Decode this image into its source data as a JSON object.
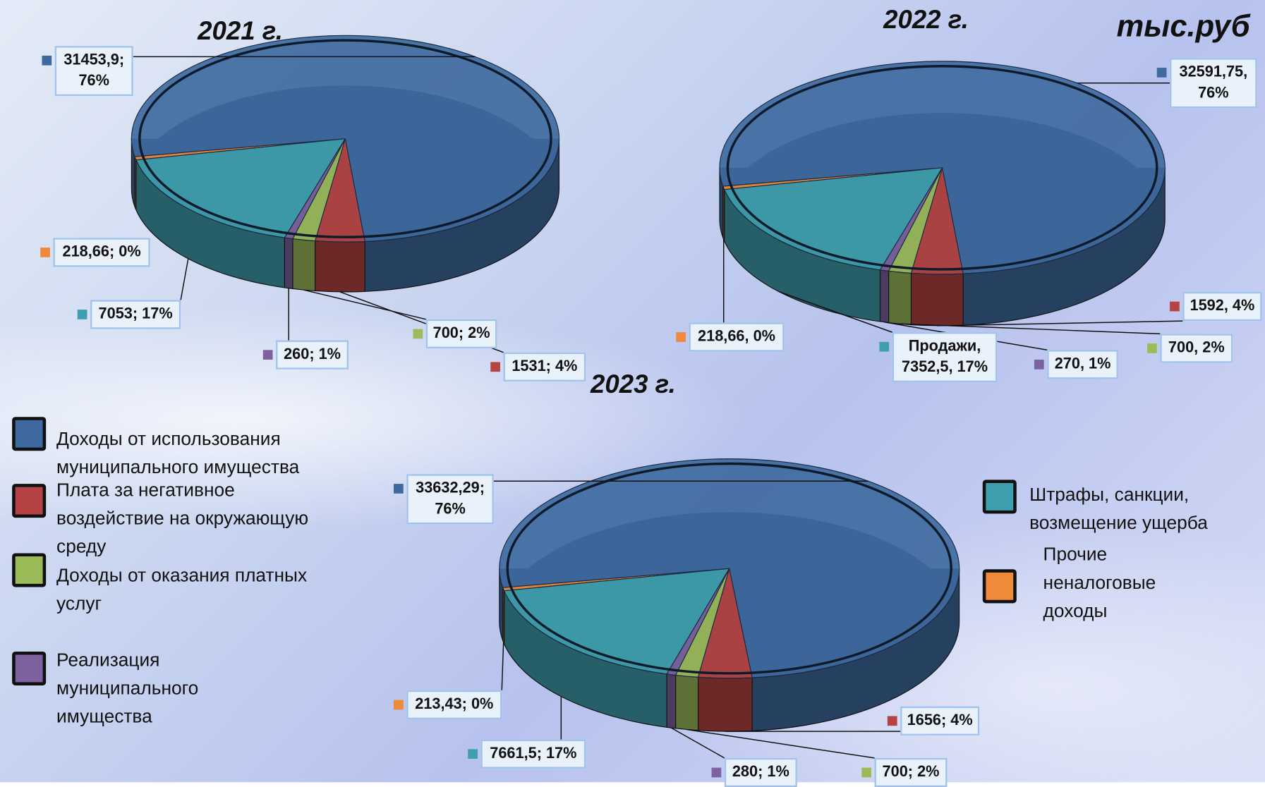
{
  "unit": "тыс.руб",
  "legend": [
    {
      "name": "Доходы от использования муниципального имущества",
      "color": "#3f6aa0"
    },
    {
      "name": "Плата за негативное воздействие на окружающую среду",
      "color": "#b64343"
    },
    {
      "name": "Доходы от оказания платных услуг",
      "color": "#9bbb59"
    },
    {
      "name": "Реализация муниципального имущества",
      "color": "#7e62a0"
    },
    {
      "name": "Штрафы, санкции, возмещение ущерба",
      "color": "#3f9fae"
    },
    {
      "name": "Прочие неналоговые доходы",
      "color": "#ee8a3a"
    }
  ],
  "chart_data": [
    {
      "type": "pie",
      "title": "2021 г.",
      "values": [
        31453.9,
        1531,
        700,
        260,
        7053,
        218.66
      ],
      "value_labels": [
        "31453,9; 76%",
        "1531; 4%",
        "700; 2%",
        "260; 1%",
        "7053; 17%",
        "218,66; 0%"
      ]
    },
    {
      "type": "pie",
      "title": "2022 г.",
      "values": [
        32591.75,
        1592,
        700,
        270,
        7352.5,
        218.66
      ],
      "value_labels": [
        "32591,75, 76%",
        "1592, 4%",
        "700, 2%",
        "270, 1%",
        "Продажи, 7352,5, 17%",
        "218,66, 0%"
      ]
    },
    {
      "type": "pie",
      "title": "2023 г.",
      "values": [
        33632.29,
        1656,
        700,
        280,
        7661.5,
        213.43
      ],
      "value_labels": [
        "33632,29; 76%",
        "1656; 4%",
        "700; 2%",
        "280; 1%",
        "7661,5; 17%",
        "213,43; 0%"
      ]
    }
  ]
}
